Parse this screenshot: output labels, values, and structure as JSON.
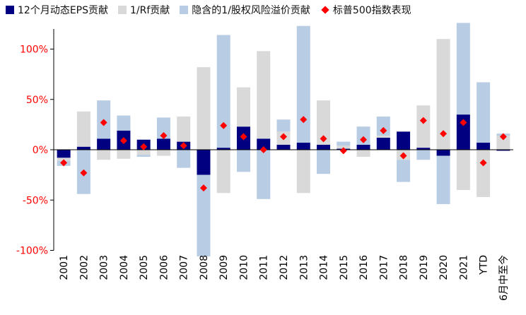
{
  "legend": {
    "eps": "12个月动态EPS贡献",
    "rf": "1/Rf贡献",
    "erp": "隐含的1/股权风险溢价贡献",
    "sp": "标普500指数表现"
  },
  "colors": {
    "eps": "#000080",
    "rf": "#d9d9d9",
    "erp": "#b8cce4",
    "sp": "#ff0000",
    "tick_labels": "#ff0000"
  },
  "chart_data": {
    "type": "bar",
    "stacked": true,
    "categories": [
      "2001",
      "2002",
      "2003",
      "2004",
      "2005",
      "2006",
      "2007",
      "2008",
      "2009",
      "2010",
      "2011",
      "2012",
      "2013",
      "2014",
      "2015",
      "2016",
      "2017",
      "2018",
      "2019",
      "2020",
      "2021",
      "YTD",
      "6月中至今"
    ],
    "series": [
      {
        "name": "12个月动态EPS贡献",
        "kind": "bar",
        "values": [
          -8,
          3,
          11,
          19,
          10,
          11,
          8,
          -25,
          2,
          23,
          11,
          5,
          7,
          5,
          1,
          5,
          12,
          18,
          2,
          -6,
          35,
          7,
          -1
        ]
      },
      {
        "name": "1/Rf贡献",
        "kind": "bar",
        "values": [
          -3,
          35,
          -10,
          -9,
          -5,
          -6,
          25,
          82,
          -43,
          39,
          87,
          13,
          -43,
          44,
          3,
          -7,
          2,
          -10,
          42,
          110,
          -40,
          -47,
          14
        ]
      },
      {
        "name": "隐含的1/股权风险溢价贡献",
        "kind": "bar",
        "values": [
          -5,
          -44,
          38,
          15,
          -2,
          21,
          -18,
          -81,
          112,
          -22,
          -49,
          12,
          116,
          -24,
          4,
          18,
          19,
          -22,
          -10,
          -48,
          91,
          60,
          2
        ]
      },
      {
        "name": "标普500指数表现",
        "kind": "scatter",
        "values": [
          -13,
          -23,
          27,
          9,
          3,
          14,
          4,
          -38,
          24,
          13,
          0,
          13,
          30,
          11,
          -1,
          10,
          19,
          -6,
          29,
          16,
          27,
          -13,
          13
        ]
      }
    ],
    "y_ticks": [
      "100%",
      "50%",
      "0%",
      "-50%",
      "-100%"
    ],
    "y_tick_values": [
      100,
      50,
      0,
      -50,
      -100
    ],
    "ylim": [
      -100,
      120
    ],
    "legend_position": "top",
    "grid": false
  }
}
